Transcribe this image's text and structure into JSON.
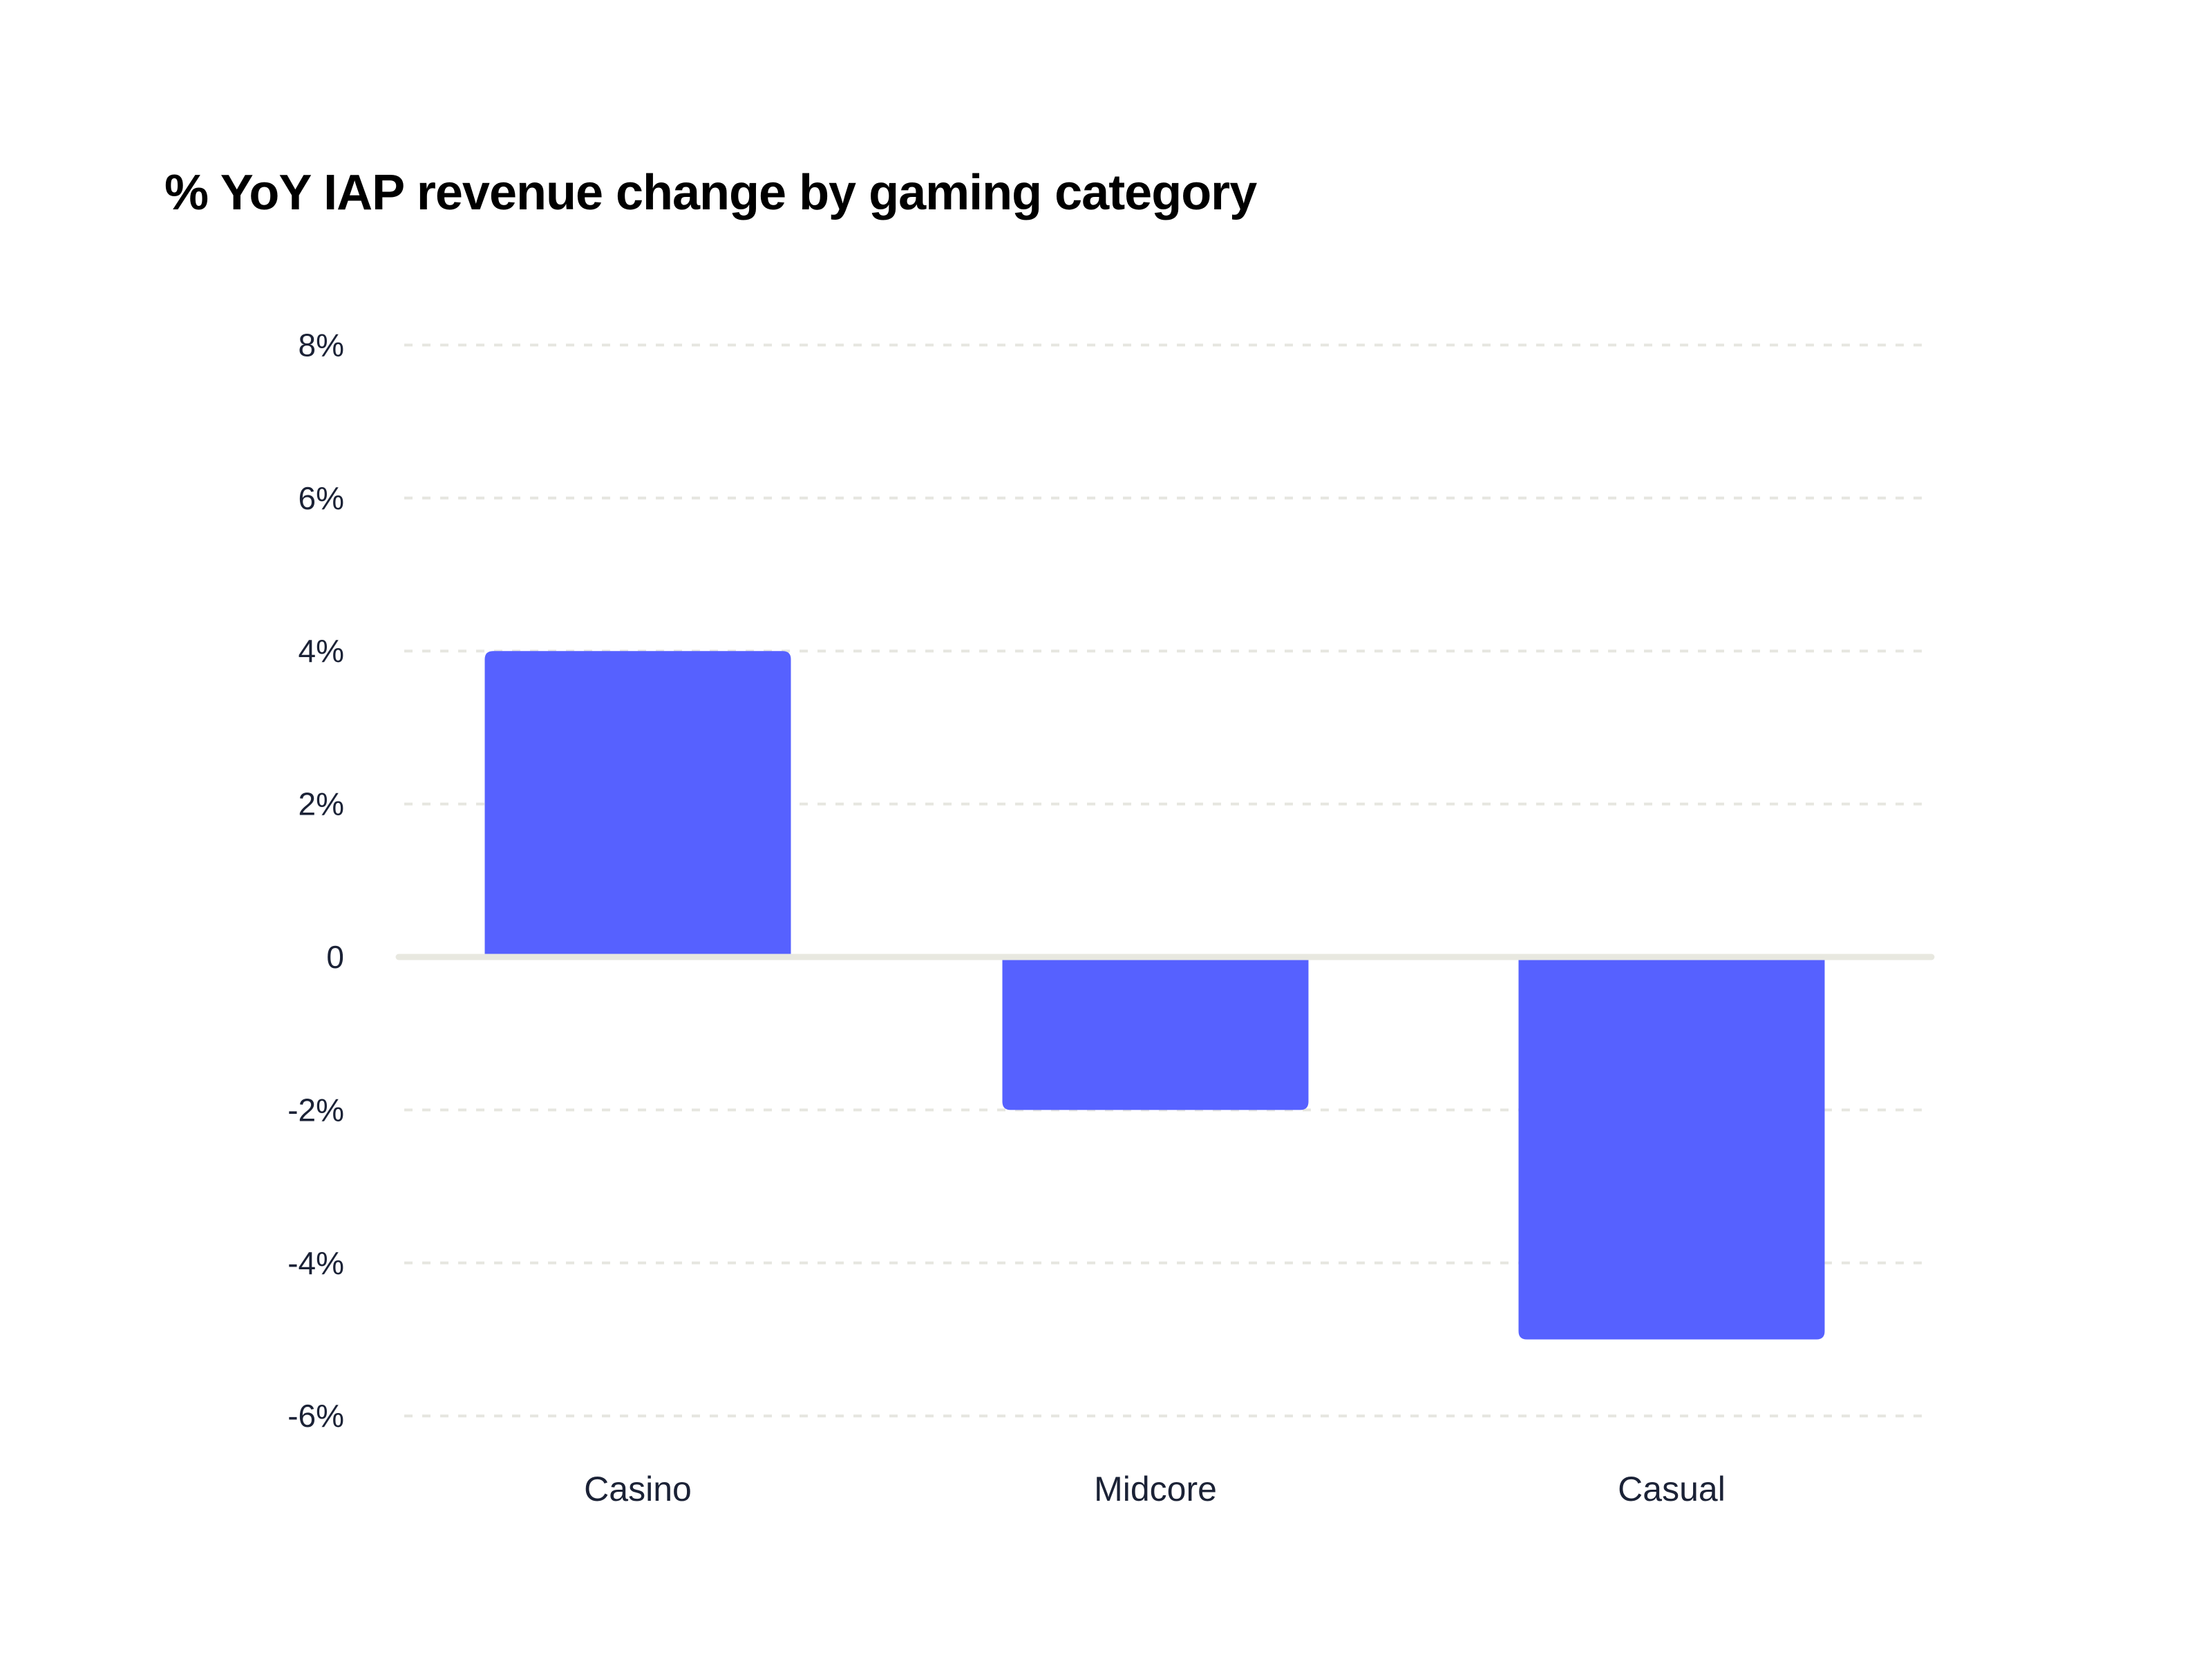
{
  "chart_data": {
    "type": "bar",
    "title": "% YoY IAP revenue change by gaming category",
    "categories": [
      "Casino",
      "Midcore",
      "Casual"
    ],
    "values": [
      4,
      -2,
      -5
    ],
    "unit": "%",
    "ylim": [
      -6,
      8
    ],
    "yticks": [
      8,
      6,
      4,
      2,
      0,
      -2,
      -4,
      -6
    ],
    "ytick_labels": [
      "8%",
      "6%",
      "4%",
      "2%",
      "0",
      "-2%",
      "-4%",
      "-6%"
    ],
    "grid": true,
    "legend": "none",
    "colors": {
      "bar": "#5661ff",
      "grid": "#e6e6e0",
      "zero_line": "#e8e8e0",
      "text": "#1b2236"
    }
  }
}
